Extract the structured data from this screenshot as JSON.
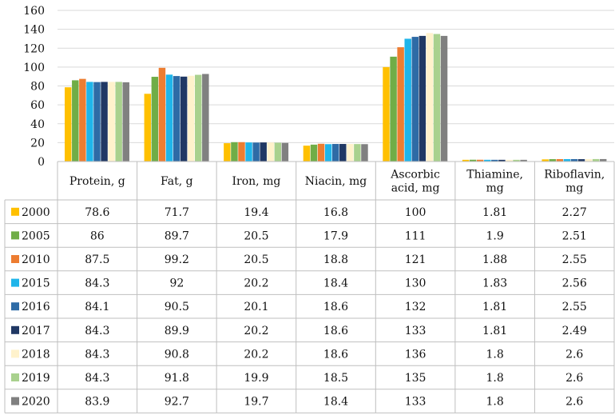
{
  "chart_data": {
    "type": "bar",
    "categories": [
      [
        "Protein, g"
      ],
      [
        "Fat, g"
      ],
      [
        "Iron, mg"
      ],
      [
        "Niacin, mg"
      ],
      [
        "Ascorbic",
        "acid, mg"
      ],
      [
        "Thiamine,",
        "mg"
      ],
      [
        "Riboflavin,",
        "mg"
      ]
    ],
    "ylim": [
      0,
      160
    ],
    "yticks": [
      "0",
      "20",
      "40",
      "60",
      "80",
      "100",
      "120",
      "140",
      "160"
    ],
    "grid": true,
    "legend": "data-table",
    "series": [
      {
        "name": "2000",
        "color": "#FFC000",
        "values": [
          78.6,
          71.7,
          19.4,
          16.8,
          100,
          1.81,
          2.27
        ],
        "labels": [
          "78.6",
          "71.7",
          "19.4",
          "16.8",
          "100",
          "1.81",
          "2.27"
        ]
      },
      {
        "name": "2005",
        "color": "#70AD47",
        "values": [
          86,
          89.7,
          20.5,
          17.9,
          111,
          1.9,
          2.51
        ],
        "labels": [
          "86",
          "89.7",
          "20.5",
          "17.9",
          "111",
          "1.9",
          "2.51"
        ]
      },
      {
        "name": "2010",
        "color": "#ED7D31",
        "values": [
          87.5,
          99.2,
          20.5,
          18.8,
          121,
          1.88,
          2.55
        ],
        "labels": [
          "87.5",
          "99.2",
          "20.5",
          "18.8",
          "121",
          "1.88",
          "2.55"
        ]
      },
      {
        "name": "2015",
        "color": "#1FB5EA",
        "values": [
          84.3,
          92,
          20.2,
          18.4,
          130,
          1.83,
          2.56
        ],
        "labels": [
          "84.3",
          "92",
          "20.2",
          "18.4",
          "130",
          "1.83",
          "2.56"
        ]
      },
      {
        "name": "2016",
        "color": "#2E6BA6",
        "values": [
          84.1,
          90.5,
          20.1,
          18.6,
          132,
          1.81,
          2.55
        ],
        "labels": [
          "84.1",
          "90.5",
          "20.1",
          "18.6",
          "132",
          "1.81",
          "2.55"
        ]
      },
      {
        "name": "2017",
        "color": "#203864",
        "values": [
          84.3,
          89.9,
          20.2,
          18.6,
          133,
          1.81,
          2.49
        ],
        "labels": [
          "84.3",
          "89.9",
          "20.2",
          "18.6",
          "133",
          "1.81",
          "2.49"
        ]
      },
      {
        "name": "2018",
        "color": "#FFF2CC",
        "values": [
          84.3,
          90.8,
          20.2,
          18.6,
          136,
          1.8,
          2.6
        ],
        "labels": [
          "84.3",
          "90.8",
          "20.2",
          "18.6",
          "136",
          "1.8",
          "2.6"
        ]
      },
      {
        "name": "2019",
        "color": "#A9D18E",
        "values": [
          84.3,
          91.8,
          19.9,
          18.5,
          135,
          1.8,
          2.6
        ],
        "labels": [
          "84.3",
          "91.8",
          "19.9",
          "18.5",
          "135",
          "1.8",
          "2.6"
        ]
      },
      {
        "name": "2020",
        "color": "#808080",
        "values": [
          83.9,
          92.7,
          19.7,
          18.4,
          133,
          1.8,
          2.6
        ],
        "labels": [
          "83.9",
          "92.7",
          "19.7",
          "18.4",
          "133",
          "1.8",
          "2.6"
        ]
      }
    ]
  }
}
